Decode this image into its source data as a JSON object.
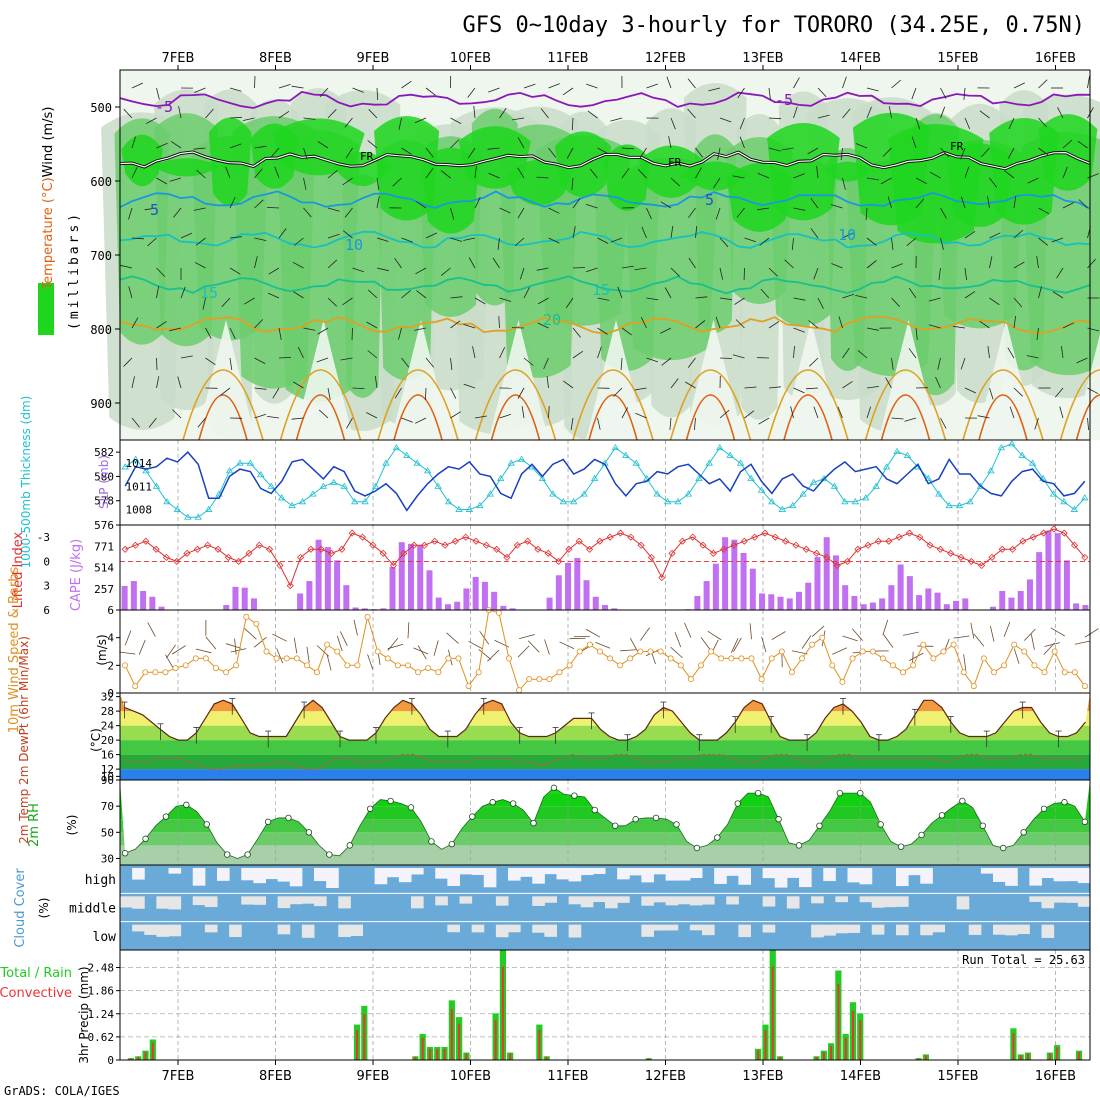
{
  "title": "GFS 0~10day 3-hourly for TORORO (34.25E, 0.75N)",
  "footer": "GrADS: COLA/IGES",
  "colors": {
    "rh_dark": "#1fd61f",
    "rh_mid": "#6ccc6c",
    "rh_light": "#c9dcc9",
    "rh_pale": "#eef6ee",
    "temp_lines": [
      "#8a18b8",
      "#2050d0",
      "#1898e0",
      "#18c0c0",
      "#18c090",
      "#e0a020",
      "#e06010"
    ],
    "slp": "#20c0d0",
    "thickness": "#1840c0",
    "lifted": "#e03030",
    "cape": "#c070f0",
    "wind10": "#e09020",
    "cloud": "#6aaad8",
    "cloud_clear": "#e6e6e6",
    "rain": "#22cc22",
    "convective": "#ee3333"
  },
  "chart_data": [
    {
      "type": "contour",
      "name": "upper_profile",
      "ylabel_parts": [
        {
          "text": "RH (%)",
          "color": "#1fd61f"
        },
        {
          "text": "Temperature (°C)",
          "color": "#e06010"
        },
        {
          "text": "Wind (m/s)",
          "color": "#000000"
        }
      ],
      "ylabel_unit": "(millibars)",
      "y_ticks": [
        500,
        600,
        700,
        800,
        900
      ],
      "ylim": [
        450,
        950
      ],
      "x_ticks": [
        "7FEB",
        "8FEB",
        "9FEB",
        "10FEB",
        "11FEB",
        "12FEB",
        "13FEB",
        "14FEB",
        "15FEB",
        "16FEB"
      ],
      "contour_labels": [
        "-5",
        "-5",
        "FR",
        "FR",
        "FR",
        "5",
        "5",
        "10",
        "10",
        "15",
        "15",
        "20"
      ]
    },
    {
      "type": "line",
      "name": "thickness_slp",
      "ylabel_left": "1000-500mb Thickness (dm)",
      "ylabel_right": "SLP (mb)",
      "y_ticks_left": [
        "582",
        "580",
        "578",
        "576"
      ],
      "y_ticks_right": [
        "1014",
        "1011",
        "1008"
      ],
      "ylim_thickness": [
        576,
        583
      ],
      "ylim_slp": [
        1006,
        1017
      ],
      "slp": [
        1013.5,
        1014.5,
        1013,
        1011,
        1009,
        1008,
        1007,
        1007,
        1008,
        1010,
        1013,
        1014,
        1014,
        1012.5,
        1011,
        1009.5,
        1008.5,
        1009,
        1010,
        1011,
        1011.5,
        1011,
        1009,
        1009,
        1011,
        1014,
        1016,
        1015,
        1014,
        1013,
        1011,
        1009,
        1008,
        1008,
        1008.5,
        1010,
        1012,
        1014,
        1014.5,
        1013.5,
        1012,
        1010,
        1009,
        1009,
        1010,
        1012,
        1014,
        1016,
        1015,
        1014,
        1012,
        1010,
        1009,
        1009,
        1010,
        1012,
        1014,
        1016,
        1015,
        1014,
        1012,
        1010.5,
        1009,
        1008,
        1008.5,
        1010,
        1011.5,
        1012,
        1011,
        1009,
        1009,
        1009.5,
        1011,
        1013.5,
        1015.5,
        1015,
        1013.5,
        1012,
        1010,
        1008.5,
        1008.5,
        1009,
        1011,
        1013,
        1016,
        1016.5,
        1015,
        1014,
        1012,
        1010,
        1009,
        1008,
        1009.5
      ],
      "thickness": [
        579.2,
        580.8,
        580.6,
        580.8,
        581.5,
        581.2,
        582.0,
        581.0,
        578.2,
        578.2,
        580.0,
        580.6,
        580.4,
        579.0,
        578.6,
        579.6,
        581.2,
        581.4,
        580.6,
        579.8,
        580.8,
        580.4,
        578.8,
        578.4,
        578.8,
        579.4,
        578.6,
        577.2,
        578.4,
        579.4,
        580.2,
        580.8,
        580.6,
        581.2,
        580.2,
        580.0,
        578.6,
        578.2,
        580.2,
        581.0,
        580.0,
        581.0,
        581.4,
        580.2,
        580.6,
        581.4,
        581.0,
        579.4,
        578.4,
        579.4,
        579.6,
        580.4,
        580.2,
        580.8,
        581.0,
        580.2,
        579.4,
        579.8,
        578.8,
        580.4,
        581.0,
        579.6,
        578.6,
        579.8,
        580.2,
        579.2,
        578.8,
        579.8,
        580.6,
        581.2,
        580.4,
        580.6,
        580.8,
        579.8,
        579.4,
        580.2,
        581.0,
        579.4,
        579.8,
        581.4,
        580.2,
        580.2,
        579.2,
        578.6,
        578.4,
        579.6,
        580.4,
        580.6,
        579.6,
        579.4,
        578.4,
        578.6,
        579.6
      ]
    },
    {
      "type": "bar+line",
      "name": "lifted_cape",
      "ylabel_left": "Lifted Index",
      "ylabel_right": "CAPE (J/kg)",
      "y_ticks_left": [
        "-3",
        "0",
        "3",
        "6"
      ],
      "y_ticks_right": [
        "771",
        "514",
        "257"
      ],
      "ylim_cape": [
        0,
        1028
      ],
      "ylim_li": [
        -4.5,
        6
      ],
      "cape": [
        290,
        350,
        230,
        160,
        40,
        0,
        0,
        0,
        0,
        0,
        0,
        60,
        280,
        270,
        140,
        0,
        0,
        0,
        0,
        200,
        350,
        850,
        760,
        600,
        300,
        30,
        20,
        10,
        20,
        520,
        820,
        800,
        780,
        480,
        150,
        70,
        100,
        260,
        400,
        340,
        220,
        50,
        20,
        0,
        0,
        0,
        150,
        420,
        570,
        630,
        360,
        160,
        60,
        20,
        0,
        0,
        0,
        0,
        0,
        0,
        0,
        10,
        170,
        350,
        560,
        880,
        850,
        690,
        500,
        200,
        190,
        160,
        140,
        220,
        330,
        640,
        880,
        660,
        300,
        170,
        70,
        90,
        140,
        300,
        550,
        410,
        180,
        260,
        210,
        70,
        110,
        140,
        0,
        0,
        40,
        230,
        150,
        230,
        370,
        700,
        960,
        930,
        600,
        80,
        60
      ],
      "lifted": [
        -1.5,
        -2.0,
        -2.5,
        -1.5,
        -0.5,
        0,
        -1.0,
        -1.5,
        -2.0,
        -1.5,
        -0.5,
        0,
        -1.0,
        -2.0,
        -1.5,
        0.5,
        3.0,
        -0.5,
        -1.5,
        -1.5,
        -1.0,
        -1.5,
        -3.5,
        -3.0,
        -2.0,
        -1.0,
        0.5,
        -1.0,
        -2.0,
        -2.0,
        -2.5,
        -2.0,
        -2.5,
        -3.0,
        -2.5,
        -2.0,
        -1.5,
        -0.5,
        -2.0,
        -2.5,
        -1.5,
        -1.0,
        0,
        -1.5,
        -2.5,
        -1.5,
        -2.5,
        -3.0,
        -3.5,
        -3.0,
        -2.0,
        -0.5,
        2.0,
        -1.0,
        -2.5,
        -3.0,
        -2.0,
        -1.0,
        -1.5,
        -2.0,
        -2.5,
        -3.0,
        -3.5,
        -3.0,
        -2.5,
        -2.0,
        -1.5,
        -1.0,
        -0.5,
        0.5,
        0,
        -1.5,
        -2.0,
        -2.5,
        -2.5,
        -3.0,
        -3.5,
        -3.0,
        -2.0,
        -1.5,
        -1.0,
        -0.5,
        0,
        0.5,
        -0.5,
        -1.5,
        -1.5,
        -2.5,
        -3.0,
        -3.5,
        -4.0,
        -3.5,
        -2.0,
        -0.5
      ]
    },
    {
      "type": "line",
      "name": "wind10m",
      "ylabel": "10m Wind Speed & Barbs",
      "ylabel_unit": "(m/s)",
      "y_ticks": [
        "6",
        "4",
        "2",
        "0"
      ],
      "ylim": [
        0,
        6
      ],
      "speed": [
        2.0,
        0.5,
        1.5,
        1.5,
        1.5,
        1.8,
        2.0,
        2.5,
        2.5,
        1.8,
        1.5,
        2.0,
        5.5,
        5.0,
        3.0,
        2.5,
        2.5,
        2.5,
        2.0,
        1.5,
        3.5,
        3.0,
        2.0,
        2.0,
        5.5,
        3.0,
        2.5,
        2.0,
        2.0,
        1.5,
        1.8,
        1.5,
        2.5,
        2.5,
        0.5,
        1.5,
        6.0,
        5.8,
        2.5,
        0.2,
        1.0,
        1.0,
        1.0,
        1.5,
        2.0,
        3.0,
        3.5,
        3.0,
        2.5,
        2.0,
        2.5,
        3.0,
        3.0,
        3.0,
        2.5,
        2.0,
        1.0,
        2.0,
        3.0,
        2.5,
        2.5,
        2.5,
        2.5,
        1.0,
        2.5,
        3.0,
        1.5,
        2.5,
        3.5,
        4.0,
        2.0,
        0.8,
        2.5,
        3.0,
        3.0,
        2.5,
        2.0,
        1.5,
        2.0,
        3.5,
        2.5,
        3.0,
        3.5,
        1.5,
        0.5,
        2.5,
        1.5,
        2.0,
        3.5,
        3.0,
        2.0,
        1.5,
        3.0,
        1.5,
        1.5,
        0.5
      ]
    },
    {
      "type": "area",
      "name": "temp2m",
      "ylabel": "2m Temp 2m DewPt (6hr Min/Max)",
      "ylabel_unit": "(°C)",
      "y_ticks": [
        "32",
        "28",
        "24",
        "20",
        "16",
        "12",
        "10"
      ],
      "ylim": [
        9,
        33
      ],
      "temp": [
        29,
        28,
        27,
        25,
        23,
        21,
        20,
        20,
        22,
        26,
        30,
        31,
        30,
        26,
        22,
        21,
        21,
        21,
        21,
        25,
        29,
        31,
        29,
        25,
        21,
        20,
        20,
        20,
        22,
        26,
        29,
        31,
        30,
        27,
        23,
        21,
        21,
        21,
        23,
        27,
        30,
        31,
        30,
        25,
        22,
        21,
        21,
        21,
        22,
        24,
        26,
        26,
        26,
        23,
        21,
        20,
        20,
        21,
        23,
        27,
        29,
        28,
        25,
        22,
        20,
        20,
        20,
        22,
        25,
        29,
        31,
        30,
        25,
        21,
        20,
        20,
        20,
        22,
        26,
        29,
        30,
        28,
        25,
        21,
        20,
        20,
        21,
        23,
        27,
        31,
        31,
        29,
        25,
        22,
        21,
        21,
        21,
        22,
        25,
        28,
        29,
        29,
        25,
        22,
        21,
        21,
        22,
        25
      ],
      "dewpt": [
        14,
        14,
        14,
        15,
        15,
        15,
        14,
        13,
        12,
        12,
        13,
        13,
        13,
        13,
        14,
        14,
        13,
        12,
        12,
        14,
        15,
        15,
        14,
        14,
        14,
        15,
        16,
        16,
        15,
        14,
        14,
        14,
        14,
        15,
        15,
        15,
        15,
        14,
        14,
        13,
        14,
        15,
        16,
        15,
        15,
        15,
        16,
        16,
        15,
        14,
        14,
        14,
        15,
        15,
        16,
        16,
        16,
        15,
        14,
        14,
        15,
        16,
        16,
        15,
        14,
        14,
        15,
        16,
        16,
        15,
        15,
        15,
        15,
        15,
        15,
        15,
        15,
        14,
        15,
        16,
        16,
        15,
        15,
        15,
        16,
        16,
        15,
        15,
        15,
        15,
        15
      ]
    },
    {
      "type": "area",
      "name": "rh2m",
      "ylabel": "2m RH",
      "ylabel_unit": "(%)",
      "y_ticks": [
        "90",
        "70",
        "50",
        "30"
      ],
      "ylim": [
        25,
        90
      ],
      "rh": [
        34,
        37,
        45,
        55,
        62,
        70,
        71,
        66,
        56,
        42,
        33,
        30,
        33,
        45,
        58,
        61,
        61,
        58,
        50,
        40,
        33,
        32,
        40,
        55,
        68,
        75,
        74,
        72,
        69,
        58,
        43,
        37,
        41,
        53,
        62,
        70,
        73,
        75,
        72,
        67,
        57,
        77,
        84,
        79,
        78,
        77,
        67,
        61,
        55,
        55,
        60,
        61,
        61,
        60,
        56,
        43,
        38,
        40,
        46,
        56,
        72,
        80,
        80,
        77,
        60,
        42,
        40,
        44,
        55,
        66,
        80,
        80,
        80,
        73,
        56,
        43,
        39,
        41,
        48,
        57,
        63,
        69,
        74,
        69,
        55,
        40,
        38,
        40,
        50,
        60,
        68,
        72,
        73,
        70,
        58
      ]
    },
    {
      "type": "bar",
      "name": "cloud",
      "ylabel": "Cloud Cover",
      "ylabel_unit": "(%)",
      "layer_labels": [
        "high",
        "middle",
        "low"
      ]
    },
    {
      "type": "bar",
      "name": "precip",
      "ylabel_parts": [
        {
          "text": "Total / Rain",
          "color": "#22cc22"
        },
        {
          "text": "Convective",
          "color": "#ee3333"
        }
      ],
      "ylabel": "3hr Precip",
      "ylabel_unit": "(mm)",
      "y_ticks": [
        "2.48",
        "1.86",
        "1.24",
        "0.62",
        "0"
      ],
      "ylim": [
        0,
        2.95
      ],
      "run_total": "Run Total = 25.63",
      "total": [
        0,
        0.05,
        0.1,
        0.25,
        0.55,
        0,
        0,
        0,
        0,
        0,
        0,
        0,
        0,
        0,
        0,
        0,
        0,
        0,
        0,
        0,
        0,
        0,
        0,
        0,
        0,
        0,
        0,
        0,
        0,
        0,
        0,
        0,
        0.95,
        1.45,
        0,
        0,
        0,
        0,
        0,
        0,
        0.1,
        0.7,
        0.35,
        0.35,
        0.35,
        1.6,
        1.15,
        0.2,
        0,
        0,
        0,
        1.25,
        2.95,
        0.2,
        0,
        0,
        0,
        0.95,
        0.1,
        0,
        0,
        0,
        0,
        0,
        0,
        0,
        0,
        0,
        0,
        0,
        0,
        0,
        0.05,
        0,
        0,
        0,
        0,
        0,
        0,
        0,
        0,
        0,
        0,
        0,
        0,
        0,
        0,
        0.3,
        0.95,
        2.95,
        0.1,
        0,
        0,
        0,
        0,
        0.1,
        0.25,
        0.45,
        2.4,
        0.7,
        1.55,
        1.25,
        0,
        0,
        0,
        0,
        0,
        0,
        0,
        0.05,
        0.15,
        0,
        0,
        0,
        0,
        0,
        0,
        0,
        0,
        0,
        0,
        0,
        0.85,
        0.15,
        0.2,
        0,
        0,
        0.2,
        0.4,
        0,
        0,
        0.25,
        0
      ]
    }
  ]
}
